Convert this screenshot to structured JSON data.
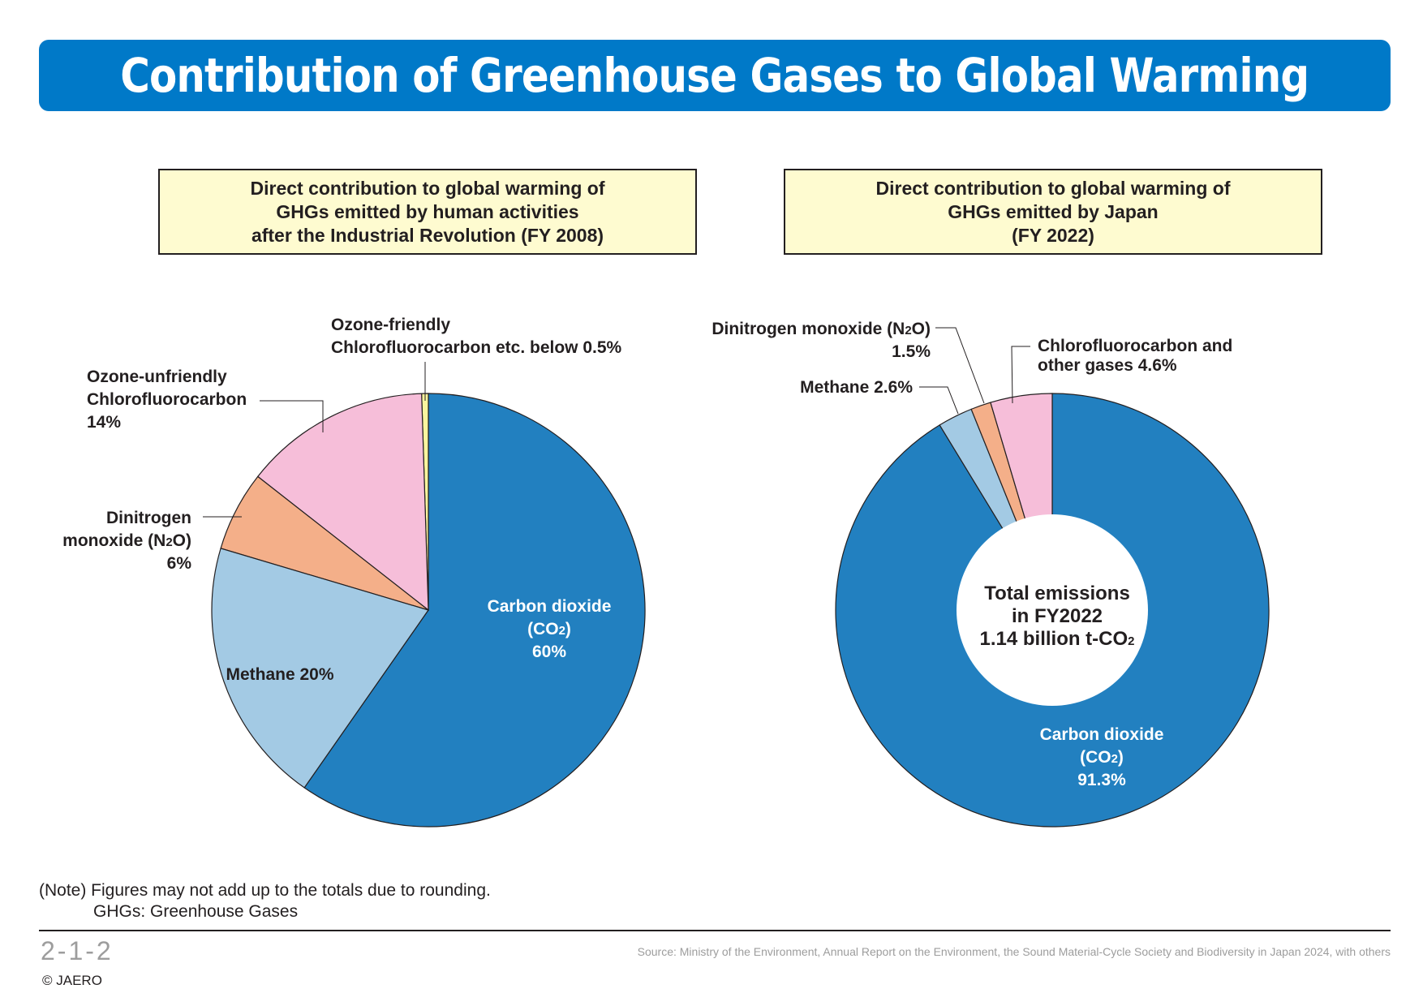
{
  "header": {
    "title": "Contribution of Greenhouse Gases to Global Warming"
  },
  "left_box": {
    "lines": [
      "Direct contribution to global warming of",
      "GHGs emitted by human activities",
      "after the Industrial Revolution (FY 2008)"
    ]
  },
  "right_box": {
    "lines": [
      "Direct contribution to global warming of",
      "GHGs emitted by Japan",
      "(FY 2022)"
    ]
  },
  "chart_data": [
    {
      "type": "pie",
      "title": "Direct contribution to global warming of GHGs emitted by human activities after the Industrial Revolution (FY 2008)",
      "slices": [
        {
          "name": "Carbon dioxide (CO2)",
          "value": 60,
          "color": "#2280c0",
          "label": [
            "Carbon dioxide",
            "(CO₂)",
            "60%"
          ]
        },
        {
          "name": "Methane",
          "value": 20,
          "color": "#a3cae4",
          "label": [
            "Methane 20%"
          ]
        },
        {
          "name": "Dinitrogen monoxide (N2O)",
          "value": 6,
          "color": "#f4af89",
          "label": [
            "Dinitrogen",
            "monoxide (N₂O)",
            "6%"
          ]
        },
        {
          "name": "Ozone-unfriendly Chlorofluorocarbon",
          "value": 14,
          "color": "#f6bed9",
          "label": [
            "Ozone-unfriendly",
            "Chlorofluorocarbon",
            "14%"
          ]
        },
        {
          "name": "Ozone-friendly Chlorofluorocarbon etc.",
          "value": 0.5,
          "color": "#fbf59e",
          "label": [
            "Ozone-friendly",
            "Chlorofluorocarbon etc. below 0.5%"
          ]
        }
      ]
    },
    {
      "type": "pie",
      "title": "Direct contribution to global warming of GHGs emitted by Japan (FY 2022)",
      "center_text": [
        "Total emissions",
        "in FY2022",
        "1.14 billion t-CO₂"
      ],
      "slices": [
        {
          "name": "Carbon dioxide (CO2)",
          "value": 91.3,
          "color": "#2280c0",
          "label": [
            "Carbon dioxide",
            "(CO₂)",
            "91.3%"
          ]
        },
        {
          "name": "Methane",
          "value": 2.6,
          "color": "#a3cae4",
          "label": [
            "Methane 2.6%"
          ]
        },
        {
          "name": "Dinitrogen monoxide (N2O)",
          "value": 1.5,
          "color": "#f4af89",
          "label": [
            "Dinitrogen monoxide (N₂O)",
            "1.5%"
          ]
        },
        {
          "name": "Chlorofluorocarbon and other gases",
          "value": 4.6,
          "color": "#f6bed9",
          "label": [
            "Chlorofluorocarbon and",
            "other gases 4.6%"
          ]
        }
      ]
    }
  ],
  "note": {
    "line1": "(Note) Figures may not add up to the totals due to rounding.",
    "line2": "GHGs: Greenhouse Gases"
  },
  "footer": {
    "figure_number": "2-1-2",
    "copyright": "© JAERO",
    "source": "Source: Ministry of the Environment, Annual Report on the Environment, the Sound Material-Cycle Society and Biodiversity in Japan 2024, with others"
  }
}
